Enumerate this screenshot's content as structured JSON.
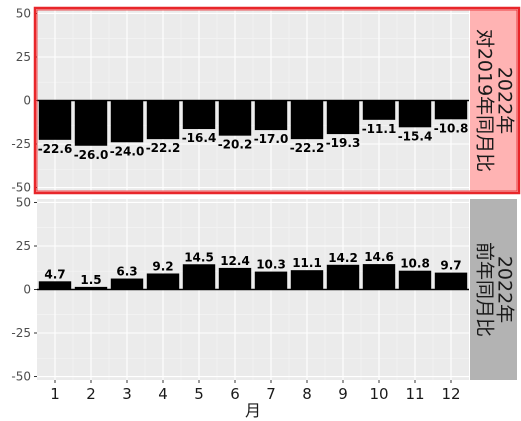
{
  "chart_data": {
    "type": "bar",
    "xlabel": "月",
    "ylabel": "",
    "ylim": [
      -52,
      52
    ],
    "yticks": [
      50,
      25,
      0,
      -25,
      -50
    ],
    "grid": true,
    "categories": [
      "1",
      "2",
      "3",
      "4",
      "5",
      "6",
      "7",
      "8",
      "9",
      "10",
      "11",
      "12"
    ],
    "panels": [
      {
        "strip_lines": [
          "2022年",
          "对2019年同月比"
        ],
        "strip_color": "#ffb3b3",
        "highlight_border": "#e8262a",
        "values": [
          -22.6,
          -26.0,
          -24.0,
          -22.2,
          -16.4,
          -20.2,
          -17.0,
          -22.2,
          -19.3,
          -11.1,
          -15.4,
          -10.8
        ],
        "labels": [
          "-22.6",
          "-26.0",
          "-24.0",
          "-22.2",
          "-16.4",
          "-20.2",
          "-17.0",
          "-22.2",
          "-19.3",
          "-11.1",
          "-15.4",
          "-10.8"
        ]
      },
      {
        "strip_lines": [
          "2022年",
          "前年同月比"
        ],
        "strip_color": "#b3b3b3",
        "values": [
          4.7,
          1.5,
          6.3,
          9.2,
          14.5,
          12.4,
          10.3,
          11.1,
          14.2,
          14.6,
          10.8,
          9.7
        ],
        "labels": [
          "4.7",
          "1.5",
          "6.3",
          "9.2",
          "14.5",
          "12.4",
          "10.3",
          "11.1",
          "14.2",
          "14.6",
          "10.8",
          "9.7"
        ]
      }
    ],
    "colors": {
      "bar": "#000000",
      "panel_bg": "#ebebeb",
      "grid": "#ffffff"
    }
  }
}
